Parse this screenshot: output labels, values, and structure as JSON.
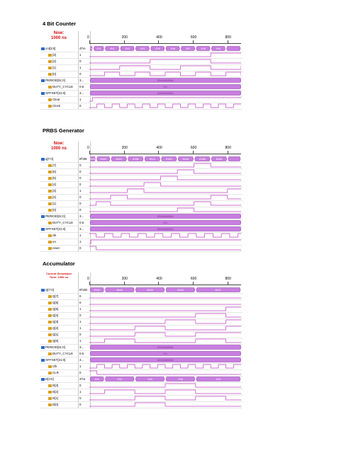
{
  "sections": [
    {
      "title": "4 Bit Counter",
      "now_label": "Now:",
      "now_value": "1000 ns",
      "ticks": [
        "0",
        "200",
        "400",
        "600",
        "800"
      ],
      "bus_header_value": "4'hA",
      "bus_values": [
        "4'hA",
        "4'h1",
        "4'h2",
        "4'h3",
        "4'h4",
        "4'h5",
        "4'h6",
        "4'h7",
        "4'h8",
        "4'h9"
      ],
      "signals": [
        {
          "name": "cnt[3:0]",
          "value": "4'hA",
          "icon": "bus"
        },
        {
          "name": "[3]",
          "value": "1",
          "icon": "bit"
        },
        {
          "name": "[2]",
          "value": "0",
          "icon": "bit"
        },
        {
          "name": "[1]",
          "value": "1",
          "icon": "bit"
        },
        {
          "name": "[0]",
          "value": "0",
          "icon": "bit"
        },
        {
          "name": "PERIOD[31:0]",
          "value": "3...",
          "icon": "bus"
        },
        {
          "name": "DUTY_CYCLE",
          "value": "0.5",
          "icon": "bit"
        },
        {
          "name": "OFFSET[31:0]",
          "value": "3...",
          "icon": "bus"
        },
        {
          "name": "Clear",
          "value": "1",
          "icon": "bit"
        },
        {
          "name": "Clock",
          "value": "0",
          "icon": "bit"
        }
      ],
      "param_texts": [
        "32'h00000064",
        "0.5",
        "32'h00000000"
      ]
    },
    {
      "title": "PRBS Generator",
      "now_label": "Now:",
      "now_value": "1000 ns",
      "ticks": [
        "0",
        "200",
        "400",
        "600",
        "800"
      ],
      "bus_header_value": "8'h08",
      "bus_values": [
        "8'h00",
        "8'h02",
        "8'h04",
        "8'h08",
        "8'h11",
        "8'h22",
        "8'h44",
        "8'h88",
        "8'h08"
      ],
      "signals": [
        {
          "name": "q[7:0]",
          "value": "8'h08",
          "icon": "bus"
        },
        {
          "name": "[7]",
          "value": "0",
          "icon": "bit"
        },
        {
          "name": "[6]",
          "value": "0",
          "icon": "bit"
        },
        {
          "name": "[5]",
          "value": "0",
          "icon": "bit"
        },
        {
          "name": "[4]",
          "value": "0",
          "icon": "bit"
        },
        {
          "name": "[3]",
          "value": "1",
          "icon": "bit"
        },
        {
          "name": "[2]",
          "value": "0",
          "icon": "bit"
        },
        {
          "name": "[1]",
          "value": "0",
          "icon": "bit"
        },
        {
          "name": "[0]",
          "value": "0",
          "icon": "bit"
        },
        {
          "name": "PERIOD[31:0]",
          "value": "3...",
          "icon": "bus"
        },
        {
          "name": "DUTY_CYCLE",
          "value": "0.5",
          "icon": "bit"
        },
        {
          "name": "OFFSET[31:0]",
          "value": "3...",
          "icon": "bus"
        },
        {
          "name": "clk",
          "value": "1",
          "icon": "bit"
        },
        {
          "name": "en",
          "value": "1",
          "icon": "bit"
        },
        {
          "name": "reset",
          "value": "0",
          "icon": "bit"
        }
      ],
      "param_texts": [
        "32'h00000064",
        "0.5",
        "32'h00000000"
      ]
    },
    {
      "title": "Accumulator",
      "now_label": "Current Simulation",
      "now_value": "Time: 1000 ns",
      "ticks": [
        "0",
        "200",
        "400",
        "600",
        "800"
      ],
      "bus_header_value": "8'h2D",
      "bus_values": [
        "8'h00",
        "8'h03",
        "8'h09",
        "8'h18",
        "8'h27"
      ],
      "bus2_values": [
        "4'h0",
        "4'h4",
        "4'h9",
        "4'h6",
        "4'h4"
      ],
      "signals": [
        {
          "name": "Q[7:0]",
          "value": "8'h2D",
          "icon": "bus"
        },
        {
          "name": "Q[7]",
          "value": "0",
          "icon": "bit"
        },
        {
          "name": "Q[6]",
          "value": "0",
          "icon": "bit"
        },
        {
          "name": "Q[5]",
          "value": "1",
          "icon": "bit"
        },
        {
          "name": "Q[4]",
          "value": "0",
          "icon": "bit"
        },
        {
          "name": "Q[3]",
          "value": "1",
          "icon": "bit"
        },
        {
          "name": "Q[2]",
          "value": "1",
          "icon": "bit"
        },
        {
          "name": "Q[1]",
          "value": "0",
          "icon": "bit"
        },
        {
          "name": "Q[0]",
          "value": "1",
          "icon": "bit"
        },
        {
          "name": "PERIOD[31:0]",
          "value": "3...",
          "icon": "bus"
        },
        {
          "name": "DUTY_CYCLE",
          "value": "0.5",
          "icon": "bit"
        },
        {
          "name": "OFFSET[31:0]",
          "value": "3...",
          "icon": "bus"
        },
        {
          "name": "Clk",
          "value": "1",
          "icon": "bit"
        },
        {
          "name": "CLR",
          "value": "0",
          "icon": "bit"
        },
        {
          "name": "D[3:0]",
          "value": "4'h4",
          "icon": "bus"
        },
        {
          "name": "D[3]",
          "value": "0",
          "icon": "bit"
        },
        {
          "name": "D[2]",
          "value": "1",
          "icon": "bit"
        },
        {
          "name": "D[1]",
          "value": "0",
          "icon": "bit"
        },
        {
          "name": "D[0]",
          "value": "0",
          "icon": "bit"
        }
      ],
      "param_texts": [
        "32'h00000064",
        "0.5",
        "32'h00000000"
      ]
    }
  ],
  "colors": {
    "wave": "#c040c0",
    "bus_fill": "#c87ee0",
    "bus_edge": "#8a3aa8",
    "now_text": "#d11010",
    "bus_icon": "#2a6ad0",
    "bit_icon": "#d8a020"
  }
}
